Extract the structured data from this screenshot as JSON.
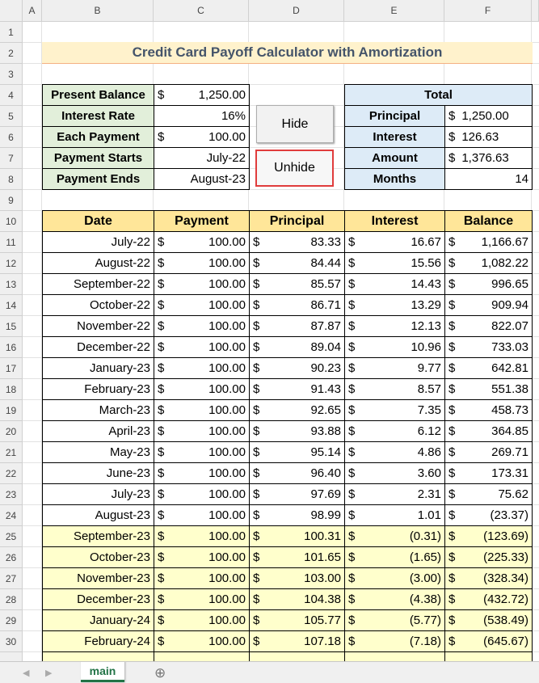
{
  "columns": [
    "A",
    "B",
    "C",
    "D",
    "E",
    "F"
  ],
  "row_headers": [
    1,
    2,
    3,
    4,
    5,
    6,
    7,
    8,
    9,
    10,
    11,
    12,
    13,
    14,
    15,
    16,
    17,
    18,
    19,
    20,
    21,
    22,
    23,
    24,
    25,
    26,
    27,
    28,
    29,
    30
  ],
  "title": "Credit Card Payoff Calculator with Amortization",
  "inputs": [
    {
      "label": "Present Balance",
      "symbol": "$",
      "value": "1,250.00"
    },
    {
      "label": "Interest Rate",
      "value": "16%"
    },
    {
      "label": "Each Payment",
      "symbol": "$",
      "value": "100.00"
    },
    {
      "label": "Payment Starts",
      "value": "July-22"
    },
    {
      "label": "Payment Ends",
      "value": "August-23"
    }
  ],
  "buttons": [
    "Hide",
    "Unhide"
  ],
  "total": {
    "title": "Total",
    "items": [
      {
        "label": "Principal",
        "symbol": "$",
        "value": "1,250.00"
      },
      {
        "label": "Interest",
        "symbol": "$",
        "value": "126.63"
      },
      {
        "label": "Amount",
        "symbol": "$",
        "value": "1,376.63"
      },
      {
        "label": "Months",
        "value": "14"
      }
    ]
  },
  "table": {
    "headers": [
      "Date",
      "Payment",
      "Principal",
      "Interest",
      "Balance"
    ],
    "currency": "$",
    "rows": [
      [
        "July-22",
        "100.00",
        "83.33",
        "16.67",
        "1,166.67"
      ],
      [
        "August-22",
        "100.00",
        "84.44",
        "15.56",
        "1,082.22"
      ],
      [
        "September-22",
        "100.00",
        "85.57",
        "14.43",
        "996.65"
      ],
      [
        "October-22",
        "100.00",
        "86.71",
        "13.29",
        "909.94"
      ],
      [
        "November-22",
        "100.00",
        "87.87",
        "12.13",
        "822.07"
      ],
      [
        "December-22",
        "100.00",
        "89.04",
        "10.96",
        "733.03"
      ],
      [
        "January-23",
        "100.00",
        "90.23",
        "9.77",
        "642.81"
      ],
      [
        "February-23",
        "100.00",
        "91.43",
        "8.57",
        "551.38"
      ],
      [
        "March-23",
        "100.00",
        "92.65",
        "7.35",
        "458.73"
      ],
      [
        "April-23",
        "100.00",
        "93.88",
        "6.12",
        "364.85"
      ],
      [
        "May-23",
        "100.00",
        "95.14",
        "4.86",
        "269.71"
      ],
      [
        "June-23",
        "100.00",
        "96.40",
        "3.60",
        "173.31"
      ],
      [
        "July-23",
        "100.00",
        "97.69",
        "2.31",
        "75.62"
      ],
      [
        "August-23",
        "100.00",
        "98.99",
        "1.01",
        "(23.37)"
      ],
      [
        "September-23",
        "100.00",
        "100.31",
        "(0.31)",
        "(123.69)"
      ],
      [
        "October-23",
        "100.00",
        "101.65",
        "(1.65)",
        "(225.33)"
      ],
      [
        "November-23",
        "100.00",
        "103.00",
        "(3.00)",
        "(328.34)"
      ],
      [
        "December-23",
        "100.00",
        "104.38",
        "(4.38)",
        "(432.72)"
      ],
      [
        "January-24",
        "100.00",
        "105.77",
        "(5.77)",
        "(538.49)"
      ],
      [
        "February-24",
        "100.00",
        "107.18",
        "(7.18)",
        "(645.67)"
      ]
    ]
  },
  "sheet_tab": "main"
}
